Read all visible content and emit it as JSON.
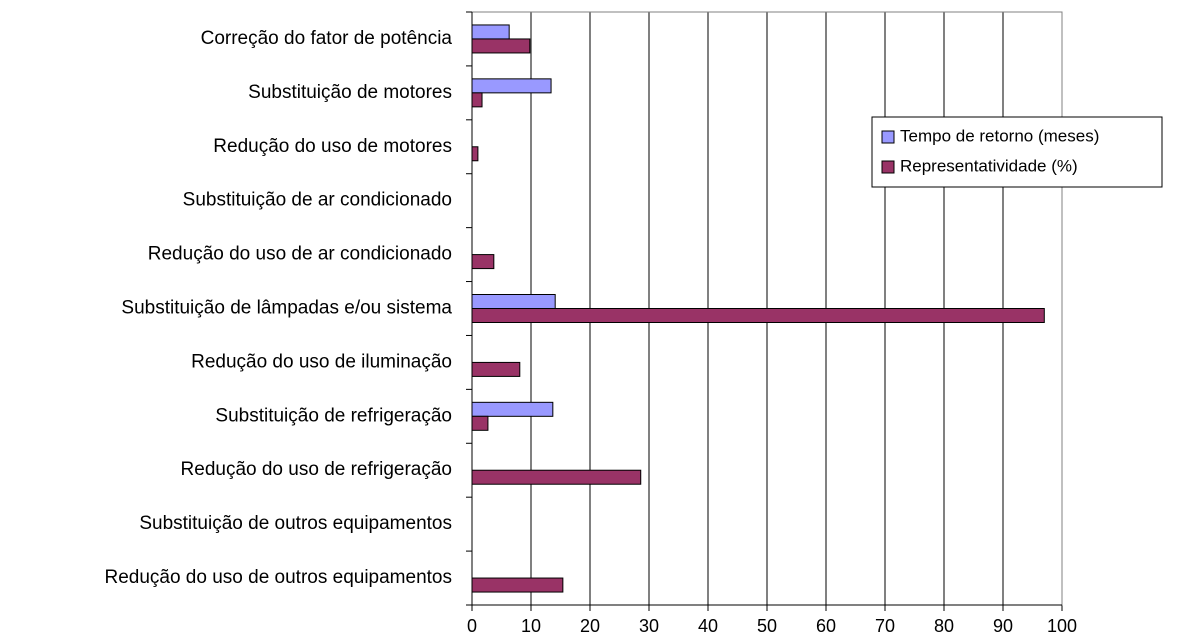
{
  "chart_data": {
    "type": "hbar",
    "categories": [
      "Correção do fator de potência",
      "Substituição de motores",
      "Redução do uso de motores",
      "Substituição de ar condicionado",
      "Redução do uso de ar condicionado",
      "Substituição de lâmpadas e/ou sistema",
      "Redução do uso de iluminação",
      "Substituição de refrigeração",
      "Redução do uso de refrigeração",
      "Substituição de outros equipamentos",
      "Redução do uso de outros equipamentos"
    ],
    "series": [
      {
        "name": "Tempo de retorno (meses)",
        "color": "#9999ff",
        "values": [
          6.3,
          13.4,
          null,
          null,
          null,
          14.1,
          null,
          13.7,
          null,
          null,
          null
        ]
      },
      {
        "name": "Representatividade (%)",
        "color": "#993366",
        "values": [
          9.8,
          1.7,
          1,
          null,
          3.7,
          97,
          8.1,
          2.7,
          28.6,
          null,
          15.4
        ]
      }
    ],
    "xlim": [
      0,
      100
    ],
    "xticks": [
      0,
      10,
      20,
      30,
      40,
      50,
      60,
      70,
      80,
      90,
      100
    ],
    "grid": true,
    "legend": "right"
  }
}
